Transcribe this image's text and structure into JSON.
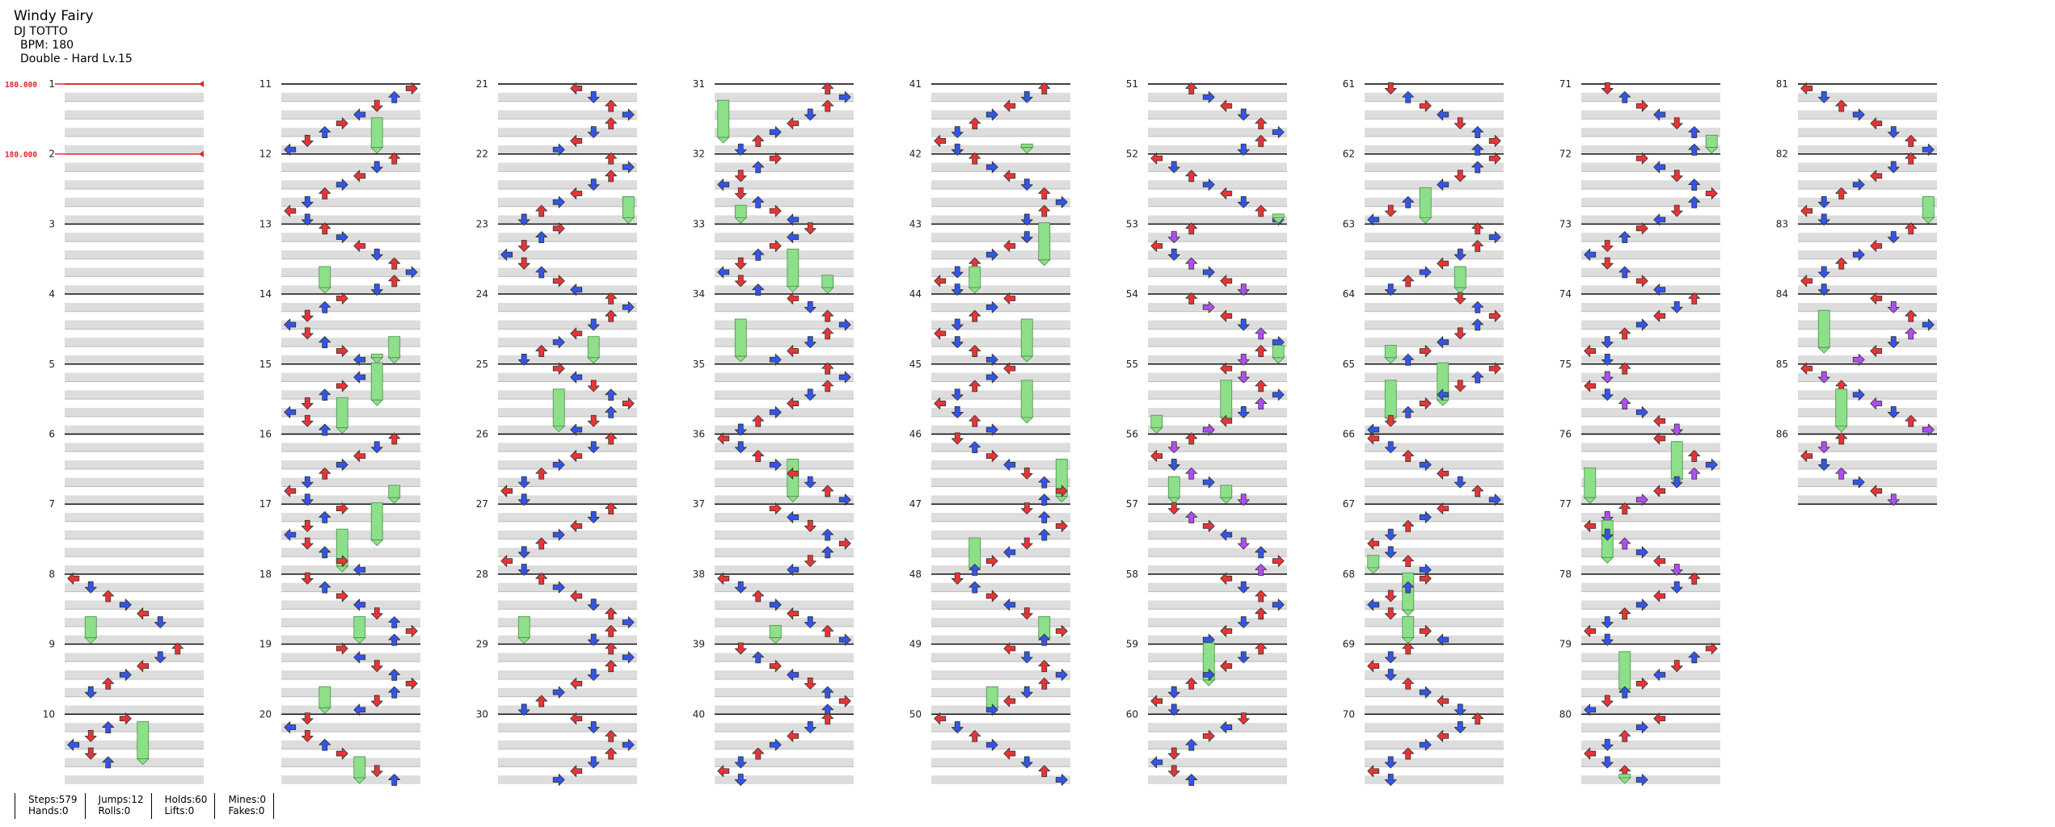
{
  "song": {
    "title": "Windy Fairy",
    "artist": "DJ TOTTO",
    "bpm_text": "BPM: 180",
    "difficulty": "Double - Hard Lv.15"
  },
  "chart_data": {
    "type": "stepchart",
    "mode": "Double",
    "lanes": 8,
    "measures": 86,
    "measures_per_column": 10,
    "bpm_changes": [
      {
        "measure": 1,
        "label": "180.000"
      },
      {
        "measure": 2,
        "label": "180.000"
      }
    ],
    "lane_directions": [
      "left",
      "down",
      "up",
      "right",
      "left",
      "down",
      "up",
      "right"
    ],
    "colors": {
      "quarter": "#e53535",
      "eighth": "#3355e6",
      "sixteenth": "#ffe14a",
      "twelfth": "#b04df0",
      "hold": "#8ddf8a",
      "measure_line": "#000000",
      "band": "#dddddd",
      "bpm": "#e02424"
    }
  },
  "stats": [
    {
      "top": "Steps:579",
      "bottom": "Hands:0"
    },
    {
      "top": "Jumps:12",
      "bottom": "Rolls:0"
    },
    {
      "top": "Holds:60",
      "bottom": "Lifts:0"
    },
    {
      "top": "Mines:0",
      "bottom": "Fakes:0"
    }
  ]
}
